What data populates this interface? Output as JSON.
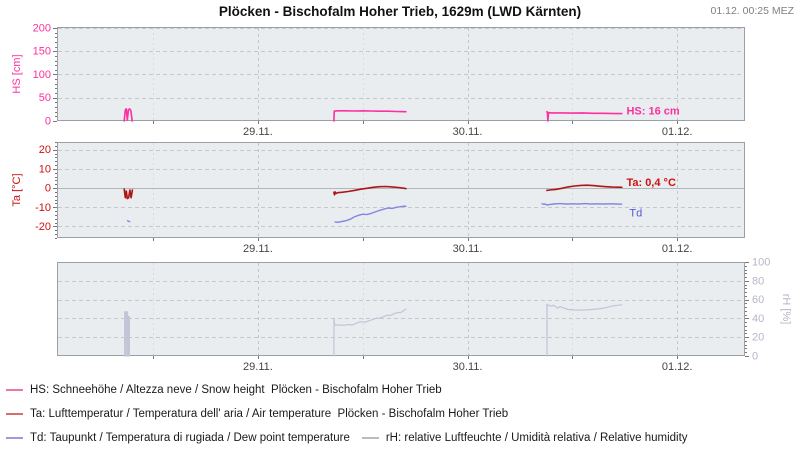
{
  "header": {
    "title": "Plöcken - Bischofalm Hoher Trieb, 1629m (LWD Kärnten)",
    "timestamp": "01.12. 00:25 MEZ"
  },
  "colors": {
    "hs": "#ff2f9e",
    "ta": "#ab1616",
    "ta_label": "#cc1111",
    "td": "#8585e0",
    "td_label": "#5555dd",
    "rh": "#c4c4d8",
    "axis_hs": "#ff2f9e",
    "axis_ta": "#cc1111",
    "axis_rh": "#b6b6c8",
    "plot_bg": "#e9edf0",
    "plot_border": "#9aa0a6",
    "grid": "#c5c8cb",
    "grid_minor": "#d9dbdd",
    "zero_line": "#b2b6ba",
    "tick": "#777777",
    "xlabel": "#444444",
    "legend_hs": "#f173ae",
    "legend_ta": "#d76d6d",
    "legend_td": "#9b9bdc",
    "legend_rh": "#bcbcbc"
  },
  "chart_data": [
    {
      "type": "line",
      "panel": "hs",
      "ylabel": "HS [cm]",
      "yaxis_side": "left",
      "axis_color_key": "axis_hs",
      "ylim": [
        0,
        202
      ],
      "yticks": [
        0,
        50,
        100,
        150,
        200
      ],
      "ygrid": [
        50,
        100,
        150,
        200
      ],
      "yminor_step": 10,
      "xlim": [
        -0.9586,
        2.3235
      ],
      "xticks": [
        {
          "t": 0,
          "label": "29.11."
        },
        {
          "t": 1,
          "label": "30.11."
        },
        {
          "t": 2,
          "label": "01.12."
        }
      ],
      "xminor": [
        -0.5,
        0.5,
        1.5
      ],
      "zero_line": false,
      "series": [
        {
          "name": "HS",
          "color_key": "hs",
          "width": 1.6,
          "segments": [
            [
              [
                -0.638,
                0
              ],
              [
                -0.633,
                24
              ],
              [
                -0.628,
                26
              ],
              [
                -0.623,
                2
              ],
              [
                -0.618,
                24
              ],
              [
                -0.612,
                26
              ],
              [
                -0.606,
                22
              ],
              [
                -0.6,
                0
              ]
            ],
            [
              [
                0.3625,
                0
              ],
              [
                0.364,
                21
              ],
              [
                0.38,
                22
              ],
              [
                0.42,
                22
              ],
              [
                0.46,
                21.5
              ],
              [
                0.5,
                22
              ],
              [
                0.54,
                21.5
              ],
              [
                0.58,
                21
              ],
              [
                0.62,
                21
              ],
              [
                0.66,
                20.5
              ],
              [
                0.7,
                20
              ],
              [
                0.706,
                20
              ]
            ],
            [
              [
                1.3784,
                20
              ],
              [
                1.381,
                18
              ],
              [
                1.383,
                0
              ],
              [
                1.386,
                18
              ],
              [
                1.4,
                17.5
              ],
              [
                1.45,
                17.5
              ],
              [
                1.5,
                17
              ],
              [
                1.55,
                17.5
              ],
              [
                1.6,
                16.5
              ],
              [
                1.65,
                16.5
              ],
              [
                1.7,
                16
              ],
              [
                1.736,
                16
              ]
            ]
          ]
        }
      ],
      "annotations": [
        {
          "text": "HS: 16 cm",
          "t": 1.758,
          "v": 22,
          "color_key": "hs",
          "bold": true
        }
      ]
    },
    {
      "type": "line",
      "panel": "ta",
      "ylabel": "Ta [°C]",
      "yaxis_side": "left",
      "axis_color_key": "axis_ta",
      "ylim": [
        -26,
        24
      ],
      "yticks": [
        -20,
        -10,
        0,
        10,
        20
      ],
      "ygrid": [
        -20,
        -10,
        10,
        20
      ],
      "yminor_step": 2,
      "xlim": [
        -0.9586,
        2.3235
      ],
      "xticks": [
        {
          "t": 0,
          "label": "29.11."
        },
        {
          "t": 1,
          "label": "30.11."
        },
        {
          "t": 2,
          "label": "01.12."
        }
      ],
      "xminor": [
        -0.5,
        0.5,
        1.5
      ],
      "zero_line": true,
      "series": [
        {
          "name": "Ta",
          "color_key": "ta",
          "width": 1.6,
          "segments": [
            [
              [
                -0.638,
                -0.5
              ],
              [
                -0.633,
                -5
              ],
              [
                -0.628,
                -1.5
              ],
              [
                -0.623,
                -5.5
              ],
              [
                -0.617,
                -5
              ],
              [
                -0.611,
                -1
              ],
              [
                -0.605,
                -5
              ],
              [
                -0.599,
                -1
              ]
            ],
            [
              [
                0.3625,
                -2.2
              ],
              [
                0.365,
                -3.5
              ],
              [
                0.368,
                -2
              ],
              [
                0.372,
                -2.8
              ],
              [
                0.38,
                -2.4
              ],
              [
                0.4,
                -2.2
              ],
              [
                0.43,
                -1.8
              ],
              [
                0.46,
                -1.2
              ],
              [
                0.49,
                -0.6
              ],
              [
                0.52,
                -0.1
              ],
              [
                0.55,
                0.4
              ],
              [
                0.58,
                0.7
              ],
              [
                0.61,
                0.8
              ],
              [
                0.64,
                0.6
              ],
              [
                0.67,
                0.3
              ],
              [
                0.7,
                -0.1
              ],
              [
                0.706,
                -0.3
              ]
            ],
            [
              [
                1.3784,
                -1.2
              ],
              [
                1.39,
                -1.0
              ],
              [
                1.42,
                -0.7
              ],
              [
                1.45,
                -0.1
              ],
              [
                1.48,
                0.6
              ],
              [
                1.51,
                1.1
              ],
              [
                1.54,
                1.4
              ],
              [
                1.57,
                1.5
              ],
              [
                1.6,
                1.3
              ],
              [
                1.63,
                1.0
              ],
              [
                1.66,
                0.7
              ],
              [
                1.69,
                0.5
              ],
              [
                1.72,
                0.45
              ],
              [
                1.736,
                0.4
              ]
            ]
          ]
        },
        {
          "name": "Td",
          "color_key": "td",
          "width": 1.4,
          "segments": [
            [
              [
                -0.622,
                -17
              ],
              [
                -0.612,
                -17.5
              ]
            ],
            [
              [
                0.368,
                -17.6
              ],
              [
                0.38,
                -17.8
              ],
              [
                0.4,
                -17.4
              ],
              [
                0.42,
                -17.0
              ],
              [
                0.44,
                -16.2
              ],
              [
                0.46,
                -15.0
              ],
              [
                0.48,
                -14.2
              ],
              [
                0.5,
                -13.6
              ],
              [
                0.52,
                -13.8
              ],
              [
                0.54,
                -13.2
              ],
              [
                0.56,
                -12.4
              ],
              [
                0.58,
                -11.6
              ],
              [
                0.6,
                -11.0
              ],
              [
                0.62,
                -10.4
              ],
              [
                0.64,
                -10.6
              ],
              [
                0.66,
                -10.0
              ],
              [
                0.68,
                -9.7
              ],
              [
                0.7,
                -9.4
              ],
              [
                0.706,
                -9.5
              ]
            ],
            [
              [
                1.355,
                -8.2
              ],
              [
                1.362,
                -8.4
              ],
              [
                1.37,
                -8.3
              ],
              [
                1.3784,
                -8.8
              ],
              [
                1.39,
                -8.6
              ],
              [
                1.41,
                -8.3
              ],
              [
                1.44,
                -8.1
              ],
              [
                1.47,
                -8.3
              ],
              [
                1.5,
                -8.2
              ],
              [
                1.53,
                -8.3
              ],
              [
                1.56,
                -8.1
              ],
              [
                1.59,
                -8.3
              ],
              [
                1.62,
                -8.2
              ],
              [
                1.65,
                -8.3
              ],
              [
                1.68,
                -8.2
              ],
              [
                1.71,
                -8.3
              ],
              [
                1.736,
                -8.4
              ]
            ]
          ]
        }
      ],
      "annotations": [
        {
          "text": "Ta: 0,4 °C",
          "t": 1.758,
          "v": 2.8,
          "color_key": "ta_label",
          "bold": true
        },
        {
          "text": "Td",
          "t": 1.772,
          "v": -13,
          "color_key": "td_label",
          "bold": false
        }
      ]
    },
    {
      "type": "line",
      "panel": "rh",
      "ylabel": "rH [%]",
      "yaxis_side": "right",
      "axis_color_key": "axis_rh",
      "ylim": [
        0,
        100
      ],
      "yticks": [
        0,
        20,
        40,
        60,
        80,
        100
      ],
      "ygrid": [
        20,
        40,
        60,
        80
      ],
      "yminor_step": 4,
      "xlim": [
        -0.9586,
        2.3235
      ],
      "xticks": [
        {
          "t": 0,
          "label": "29.11."
        },
        {
          "t": 1,
          "label": "30.11."
        },
        {
          "t": 2,
          "label": "01.12."
        }
      ],
      "xminor": [
        -0.5,
        0.5,
        1.5
      ],
      "zero_line": false,
      "series": [
        {
          "name": "rH",
          "color_key": "rh",
          "width": 1.2,
          "segments": [
            [
              [
                -0.636,
                0
              ],
              [
                -0.6357,
                47
              ],
              [
                -0.6303,
                47
              ],
              [
                -0.63,
                0
              ],
              [
                -0.628,
                0
              ],
              [
                -0.6277,
                47
              ],
              [
                -0.6223,
                47
              ],
              [
                -0.622,
                0
              ],
              [
                -0.619,
                0
              ],
              [
                -0.6187,
                42
              ],
              [
                -0.6133,
                42
              ],
              [
                -0.613,
                0
              ]
            ],
            [
              [
                0.3625,
                0
              ],
              [
                0.363,
                40
              ],
              [
                0.366,
                33
              ],
              [
                0.38,
                33
              ],
              [
                0.4,
                33
              ],
              [
                0.41,
                32.5
              ],
              [
                0.43,
                33.5
              ],
              [
                0.45,
                33
              ],
              [
                0.47,
                35
              ],
              [
                0.49,
                36.5
              ],
              [
                0.51,
                36
              ],
              [
                0.53,
                37.5
              ],
              [
                0.55,
                39
              ],
              [
                0.57,
                40.5
              ],
              [
                0.58,
                40
              ],
              [
                0.6,
                42
              ],
              [
                0.62,
                43.5
              ],
              [
                0.63,
                43
              ],
              [
                0.65,
                45
              ],
              [
                0.67,
                46.5
              ],
              [
                0.68,
                46
              ],
              [
                0.7,
                49
              ],
              [
                0.706,
                50
              ]
            ],
            [
              [
                1.3784,
                55
              ],
              [
                1.379,
                0
              ],
              [
                1.3796,
                55
              ],
              [
                1.385,
                54
              ],
              [
                1.4,
                53
              ],
              [
                1.41,
                54
              ],
              [
                1.43,
                51
              ],
              [
                1.44,
                52.5
              ],
              [
                1.46,
                51
              ],
              [
                1.48,
                49.5
              ],
              [
                1.5,
                49
              ],
              [
                1.53,
                48.8
              ],
              [
                1.56,
                49
              ],
              [
                1.59,
                49.5
              ],
              [
                1.62,
                50
              ],
              [
                1.65,
                51
              ],
              [
                1.68,
                52.5
              ],
              [
                1.7,
                53.5
              ],
              [
                1.72,
                54
              ],
              [
                1.736,
                54.5
              ]
            ]
          ]
        }
      ],
      "annotations": []
    }
  ],
  "legend": {
    "rows": [
      [
        {
          "key": "hs",
          "color_key": "legend_hs",
          "label": "HS: Schneehöhe / Altezza neve / Snow height  Plöcken - Bischofalm Hoher Trieb"
        }
      ],
      [
        {
          "key": "ta",
          "color_key": "legend_ta",
          "label": "Ta: Lufttemperatur / Temperatura dell' aria / Air temperature  Plöcken - Bischofalm Hoher Trieb"
        }
      ],
      [
        {
          "key": "td",
          "color_key": "legend_td",
          "label": "Td: Taupunkt / Temperatura di rugiada / Dew point temperature"
        },
        {
          "key": "rh",
          "color_key": "legend_rh",
          "label": "rH: relative Luftfeuchte / Umidità relativa / Relative humidity"
        }
      ]
    ]
  }
}
